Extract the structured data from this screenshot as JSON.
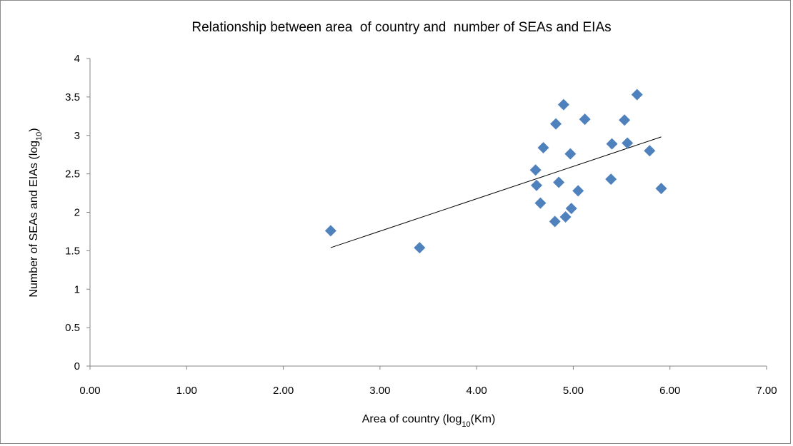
{
  "chart_data": {
    "type": "scatter",
    "title": "Relationship between area  of country and  number of SEAs and EIAs",
    "xlabel": {
      "pre": "Area of country (log",
      "sub": "10",
      "post": "(Km)"
    },
    "ylabel": {
      "pre": "Number of SEAs and EIAs (log",
      "sub": "10",
      "post": ")"
    },
    "xlim": [
      0,
      7
    ],
    "ylim": [
      0,
      4
    ],
    "x_ticks": [
      0,
      1,
      2,
      3,
      4,
      5,
      6,
      7
    ],
    "x_tick_labels": [
      "0.00",
      "1.00",
      "2.00",
      "3.00",
      "4.00",
      "5.00",
      "6.00",
      "7.00"
    ],
    "y_ticks": [
      0,
      0.5,
      1,
      1.5,
      2,
      2.5,
      3,
      3.5,
      4
    ],
    "y_tick_labels": [
      "0",
      "0.5",
      "1",
      "1.5",
      "2",
      "2.5",
      "3",
      "3.5",
      "4"
    ],
    "grid": false,
    "marker": "diamond",
    "marker_color": "#4f81bd",
    "trendline_color": "#000000",
    "series": [
      {
        "points": [
          [
            2.49,
            1.76
          ],
          [
            3.41,
            1.54
          ],
          [
            4.61,
            2.55
          ],
          [
            4.62,
            2.35
          ],
          [
            4.66,
            2.12
          ],
          [
            4.69,
            2.84
          ],
          [
            4.81,
            1.88
          ],
          [
            4.82,
            3.15
          ],
          [
            4.85,
            2.39
          ],
          [
            4.9,
            3.4
          ],
          [
            4.92,
            1.94
          ],
          [
            4.97,
            2.76
          ],
          [
            4.98,
            2.05
          ],
          [
            5.05,
            2.28
          ],
          [
            5.12,
            3.21
          ],
          [
            5.39,
            2.43
          ],
          [
            5.4,
            2.89
          ],
          [
            5.53,
            3.2
          ],
          [
            5.56,
            2.9
          ],
          [
            5.66,
            3.53
          ],
          [
            5.79,
            2.8
          ],
          [
            5.91,
            2.31
          ]
        ],
        "trendline": {
          "x": [
            2.49,
            5.91
          ],
          "y": [
            1.54,
            2.98
          ]
        }
      }
    ]
  }
}
